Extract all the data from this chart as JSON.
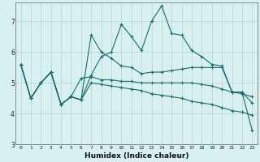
{
  "xlabel": "Humidex (Indice chaleur)",
  "bg_color": "#d8f0f0",
  "grid_color": "#b8d4d4",
  "line_color": "#1a6b6b",
  "xlim": [
    -0.5,
    23.5
  ],
  "ylim": [
    3,
    7.6
  ],
  "yticks": [
    3,
    4,
    5,
    6,
    7
  ],
  "xticks": [
    0,
    1,
    2,
    3,
    4,
    5,
    6,
    7,
    8,
    9,
    10,
    11,
    12,
    13,
    14,
    15,
    16,
    17,
    18,
    19,
    20,
    21,
    22,
    23
  ],
  "series": [
    [
      5.6,
      4.5,
      5.0,
      5.35,
      4.3,
      4.55,
      4.45,
      6.55,
      6.0,
      5.8,
      5.55,
      5.5,
      5.3,
      5.35,
      5.35,
      5.4,
      5.45,
      5.5,
      5.5,
      5.5,
      5.5,
      4.7,
      4.7,
      4.35
    ],
    [
      5.6,
      4.5,
      5.0,
      5.35,
      4.3,
      4.55,
      5.15,
      5.2,
      5.1,
      5.1,
      5.05,
      5.05,
      5.0,
      5.0,
      5.0,
      5.0,
      5.0,
      5.0,
      4.95,
      4.9,
      4.8,
      4.7,
      4.65,
      4.55
    ],
    [
      5.6,
      4.5,
      5.0,
      5.35,
      4.3,
      4.55,
      4.45,
      5.25,
      5.85,
      6.0,
      6.9,
      6.5,
      6.05,
      7.0,
      7.5,
      6.6,
      6.55,
      6.05,
      5.85,
      5.6,
      5.55,
      4.7,
      4.7,
      3.45
    ],
    [
      5.6,
      4.5,
      5.0,
      5.35,
      4.3,
      4.55,
      4.45,
      5.0,
      4.95,
      4.9,
      4.85,
      4.8,
      4.75,
      4.65,
      4.6,
      4.55,
      4.5,
      4.4,
      4.35,
      4.3,
      4.2,
      4.1,
      4.05,
      3.95
    ]
  ]
}
